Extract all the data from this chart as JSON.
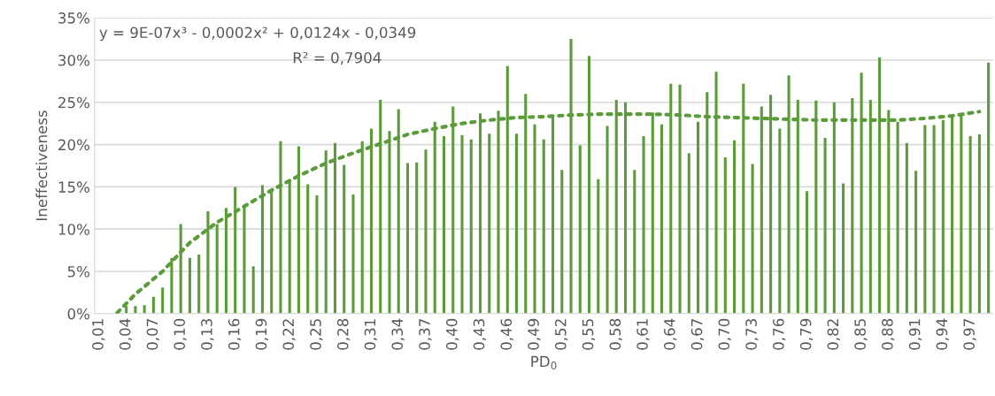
{
  "chart_data": {
    "type": "bar",
    "xlabel": "PD$_{0}$",
    "ylabel": "Ineffectiveness",
    "x": [
      0.01,
      0.02,
      0.03,
      0.04,
      0.05,
      0.06,
      0.07,
      0.08,
      0.09,
      0.1,
      0.11,
      0.12,
      0.13,
      0.14,
      0.15,
      0.16,
      0.17,
      0.18,
      0.19,
      0.2,
      0.21,
      0.22,
      0.23,
      0.24,
      0.25,
      0.26,
      0.27,
      0.28,
      0.29,
      0.3,
      0.31,
      0.32,
      0.33,
      0.34,
      0.35,
      0.36,
      0.37,
      0.38,
      0.39,
      0.4,
      0.41,
      0.42,
      0.43,
      0.44,
      0.45,
      0.46,
      0.47,
      0.48,
      0.49,
      0.5,
      0.51,
      0.52,
      0.53,
      0.54,
      0.55,
      0.56,
      0.57,
      0.58,
      0.59,
      0.6,
      0.61,
      0.62,
      0.63,
      0.64,
      0.65,
      0.66,
      0.67,
      0.68,
      0.69,
      0.7,
      0.71,
      0.72,
      0.73,
      0.74,
      0.75,
      0.76,
      0.77,
      0.78,
      0.79,
      0.8,
      0.81,
      0.82,
      0.83,
      0.84,
      0.85,
      0.86,
      0.87,
      0.88,
      0.89,
      0.9,
      0.91,
      0.92,
      0.93,
      0.94,
      0.95,
      0.96,
      0.97,
      0.98,
      0.99
    ],
    "series": [
      {
        "color": "#5b9b3a",
        "values": [
          0,
          0,
          0,
          0.9,
          0.9,
          1.0,
          2.0,
          3.1,
          6.6,
          10.6,
          6.6,
          7.0,
          12.1,
          10.6,
          12.5,
          15.0,
          12.6,
          5.6,
          15.2,
          14.5,
          20.4,
          15.8,
          19.8,
          15.3,
          14.0,
          19.3,
          20.2,
          17.6,
          14.1,
          20.4,
          21.9,
          25.3,
          21.6,
          24.2,
          17.8,
          17.9,
          19.4,
          22.7,
          21.0,
          24.5,
          21.1,
          20.6,
          23.7,
          21.3,
          24.0,
          29.3,
          21.3,
          26.0,
          22.4,
          20.6,
          23.3,
          17.0,
          32.5,
          19.9,
          30.5,
          15.9,
          22.2,
          25.3,
          25.0,
          17.0,
          21.0,
          23.8,
          22.4,
          27.2,
          27.1,
          19.0,
          22.7,
          26.2,
          28.6,
          18.5,
          20.5,
          27.2,
          17.7,
          24.5,
          25.9,
          21.9,
          28.2,
          25.3,
          14.5,
          25.2,
          20.8,
          25.0,
          15.4,
          25.5,
          28.5,
          25.3,
          30.3,
          24.1,
          22.7,
          20.2,
          16.9,
          22.3,
          22.3,
          22.9,
          23.3,
          23.4,
          21.0,
          21.2,
          29.7
        ]
      },
      {
        "type": "line",
        "color": "#5b9b3a",
        "line_style": "dotted",
        "x": [
          0.03,
          0.05,
          0.08,
          0.11,
          0.14,
          0.17,
          0.2,
          0.23,
          0.26,
          0.29,
          0.32,
          0.35,
          0.38,
          0.41,
          0.44,
          0.47,
          0.5,
          0.53,
          0.56,
          0.59,
          0.62,
          0.65,
          0.68,
          0.71,
          0.74,
          0.77,
          0.8,
          0.83,
          0.86,
          0.89,
          0.92,
          0.95,
          0.98
        ],
        "values": [
          0.1,
          2.3,
          5.0,
          8.4,
          10.8,
          12.7,
          14.6,
          16.3,
          17.8,
          19.0,
          20.1,
          21.2,
          21.9,
          22.5,
          22.9,
          23.2,
          23.3,
          23.5,
          23.6,
          23.6,
          23.6,
          23.5,
          23.3,
          23.2,
          23.1,
          23.0,
          22.9,
          22.9,
          22.9,
          22.9,
          23.1,
          23.4,
          23.9
        ]
      }
    ],
    "annotations": [
      "y = 9E-07x³ - 0,0002x² + 0,0124x - 0,0349",
      "R² = 0,7904"
    ],
    "xlim": [
      0.005,
      0.995
    ],
    "xticks": [
      {
        "value": 0.01,
        "label": "0,01"
      },
      {
        "value": 0.04,
        "label": "0,04"
      },
      {
        "value": 0.07,
        "label": "0,07"
      },
      {
        "value": 0.1,
        "label": "0,10"
      },
      {
        "value": 0.13,
        "label": "0,13"
      },
      {
        "value": 0.16,
        "label": "0,16"
      },
      {
        "value": 0.19,
        "label": "0,19"
      },
      {
        "value": 0.22,
        "label": "0,22"
      },
      {
        "value": 0.25,
        "label": "0,25"
      },
      {
        "value": 0.28,
        "label": "0,28"
      },
      {
        "value": 0.31,
        "label": "0,31"
      },
      {
        "value": 0.34,
        "label": "0,34"
      },
      {
        "value": 0.37,
        "label": "0,37"
      },
      {
        "value": 0.4,
        "label": "0,40"
      },
      {
        "value": 0.43,
        "label": "0,43"
      },
      {
        "value": 0.46,
        "label": "0,46"
      },
      {
        "value": 0.49,
        "label": "0,49"
      },
      {
        "value": 0.52,
        "label": "0,52"
      },
      {
        "value": 0.55,
        "label": "0,55"
      },
      {
        "value": 0.58,
        "label": "0,58"
      },
      {
        "value": 0.61,
        "label": "0,61"
      },
      {
        "value": 0.64,
        "label": "0,64"
      },
      {
        "value": 0.67,
        "label": "0,67"
      },
      {
        "value": 0.7,
        "label": "0,70"
      },
      {
        "value": 0.73,
        "label": "0,73"
      },
      {
        "value": 0.76,
        "label": "0,76"
      },
      {
        "value": 0.79,
        "label": "0,79"
      },
      {
        "value": 0.82,
        "label": "0,82"
      },
      {
        "value": 0.85,
        "label": "0,85"
      },
      {
        "value": 0.88,
        "label": "0,88"
      },
      {
        "value": 0.91,
        "label": "0,91"
      },
      {
        "value": 0.94,
        "label": "0,94"
      },
      {
        "value": 0.97,
        "label": "0,97"
      }
    ],
    "ylim": [
      0,
      35
    ],
    "yticks": [
      {
        "value": 0,
        "label": "0%"
      },
      {
        "value": 5,
        "label": "5%"
      },
      {
        "value": 10,
        "label": "10%"
      },
      {
        "value": 15,
        "label": "15%"
      },
      {
        "value": 20,
        "label": "20%"
      },
      {
        "value": 25,
        "label": "25%"
      },
      {
        "value": 30,
        "label": "30%"
      },
      {
        "value": 35,
        "label": "35%"
      }
    ],
    "grid": "y"
  }
}
